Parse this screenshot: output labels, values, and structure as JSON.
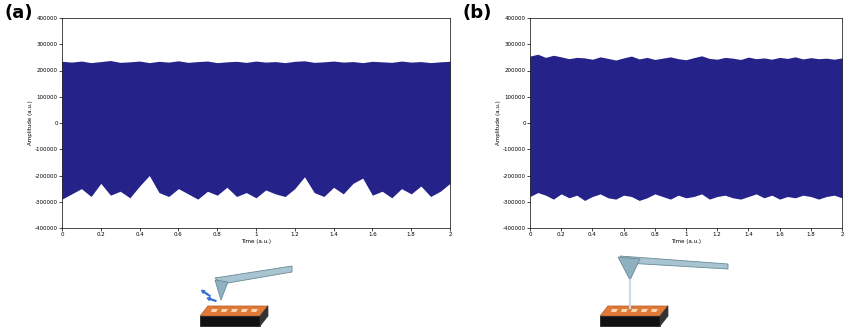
{
  "chart_data": [
    {
      "type": "area",
      "label": "(a)",
      "x_label": "Time (a.u.)",
      "y_label": "Amplitude (a.u.)",
      "color": "#25238a",
      "x": [
        0,
        0.05,
        0.1,
        0.15,
        0.2,
        0.25,
        0.3,
        0.35,
        0.4,
        0.45,
        0.5,
        0.55,
        0.6,
        0.65,
        0.7,
        0.75,
        0.8,
        0.85,
        0.9,
        0.95,
        1,
        1.05,
        1.1,
        1.15,
        1.2,
        1.25,
        1.3,
        1.35,
        1.4,
        1.45,
        1.5,
        1.55,
        1.6,
        1.65,
        1.7,
        1.75,
        1.8,
        1.85,
        1.9,
        1.95,
        2
      ],
      "series": [
        {
          "values": [
            235000,
            232000,
            236000,
            230000,
            234000,
            238000,
            231000,
            233000,
            236000,
            230000,
            235000,
            232000,
            237000,
            231000,
            234000,
            236000,
            230000,
            233000,
            235000,
            231000,
            236000,
            232000,
            234000,
            230000,
            235000,
            237000,
            231000,
            233000,
            236000,
            232000,
            234000,
            230000,
            235000,
            233000,
            231000,
            236000,
            232000,
            234000,
            230000,
            233000,
            235000
          ]
        },
        {
          "values": [
            -290000,
            -270000,
            -250000,
            -280000,
            -230000,
            -275000,
            -260000,
            -285000,
            -240000,
            -200000,
            -265000,
            -280000,
            -250000,
            -270000,
            -290000,
            -260000,
            -275000,
            -245000,
            -280000,
            -265000,
            -285000,
            -255000,
            -270000,
            -280000,
            -250000,
            -205000,
            -265000,
            -280000,
            -245000,
            -270000,
            -230000,
            -210000,
            -275000,
            -260000,
            -285000,
            -250000,
            -270000,
            -240000,
            -280000,
            -260000,
            -230000
          ]
        }
      ],
      "xlim": [
        0,
        2
      ],
      "xticks": [
        0,
        0.2,
        0.4,
        0.6,
        0.8,
        1,
        1.2,
        1.4,
        1.6,
        1.8,
        2
      ],
      "ylim": [
        -400000,
        400000
      ],
      "yticks": [
        -400000,
        -300000,
        -200000,
        -100000,
        0,
        100000,
        200000,
        300000,
        400000
      ]
    },
    {
      "type": "area",
      "label": "(b)",
      "x_label": "Time (a.u.)",
      "y_label": "Amplitude (a.u.)",
      "color": "#25238a",
      "x": [
        0,
        0.05,
        0.1,
        0.15,
        0.2,
        0.25,
        0.3,
        0.35,
        0.4,
        0.45,
        0.5,
        0.55,
        0.6,
        0.65,
        0.7,
        0.75,
        0.8,
        0.85,
        0.9,
        0.95,
        1,
        1.05,
        1.1,
        1.15,
        1.2,
        1.25,
        1.3,
        1.35,
        1.4,
        1.45,
        1.5,
        1.55,
        1.6,
        1.65,
        1.7,
        1.75,
        1.8,
        1.85,
        1.9,
        1.95,
        2
      ],
      "series": [
        {
          "values": [
            255000,
            262000,
            250000,
            258000,
            252000,
            245000,
            250000,
            248000,
            243000,
            252000,
            246000,
            240000,
            248000,
            255000,
            244000,
            250000,
            242000,
            247000,
            252000,
            245000,
            241000,
            249000,
            256000,
            246000,
            243000,
            250000,
            247000,
            242000,
            251000,
            245000,
            248000,
            243000,
            250000,
            246000,
            252000,
            244000,
            249000,
            245000,
            247000,
            243000,
            248000
          ]
        },
        {
          "values": [
            -280000,
            -265000,
            -275000,
            -290000,
            -270000,
            -285000,
            -275000,
            -295000,
            -280000,
            -270000,
            -285000,
            -290000,
            -275000,
            -280000,
            -295000,
            -285000,
            -270000,
            -280000,
            -290000,
            -275000,
            -285000,
            -280000,
            -270000,
            -290000,
            -280000,
            -275000,
            -285000,
            -290000,
            -280000,
            -270000,
            -285000,
            -275000,
            -290000,
            -280000,
            -285000,
            -275000,
            -280000,
            -290000,
            -280000,
            -275000,
            -285000
          ]
        }
      ],
      "xlim": [
        0,
        2
      ],
      "xticks": [
        0,
        0.2,
        0.4,
        0.6,
        0.8,
        1,
        1.2,
        1.4,
        1.6,
        1.8,
        2
      ],
      "ylim": [
        -400000,
        400000
      ],
      "yticks": [
        -400000,
        -300000,
        -200000,
        -100000,
        0,
        100000,
        200000,
        300000,
        400000
      ]
    }
  ]
}
